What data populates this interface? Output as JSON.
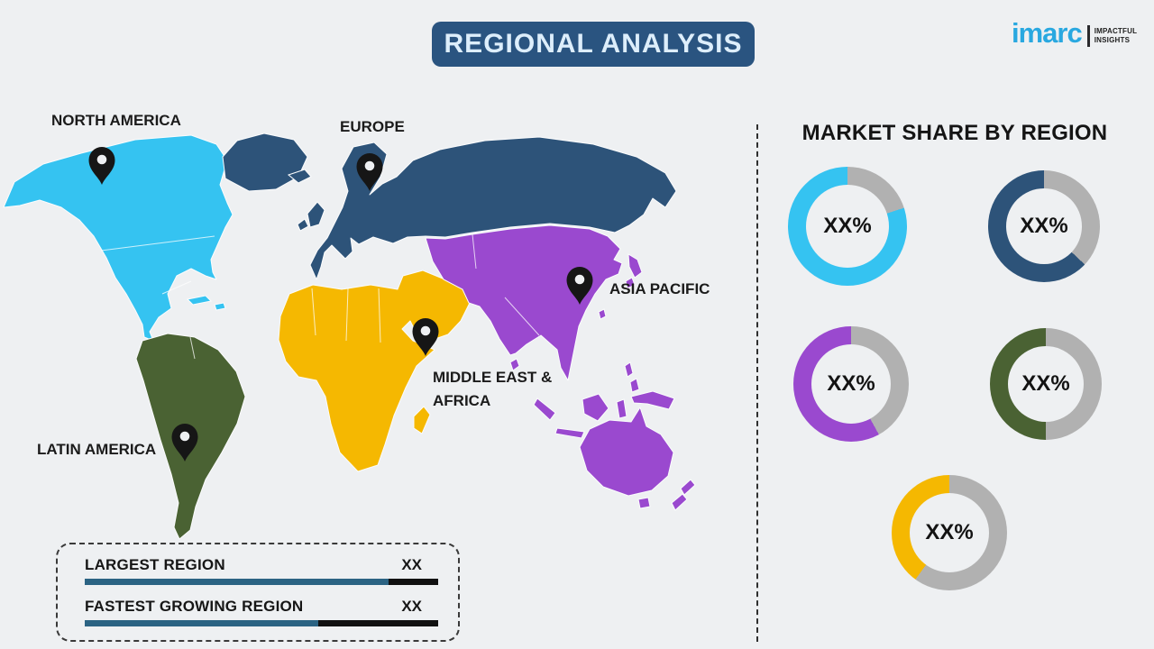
{
  "header": {
    "title": "REGIONAL ANALYSIS"
  },
  "logo": {
    "brand": "imarc",
    "tagline_line1": "IMPACTFUL",
    "tagline_line2": "INSIGHTS",
    "brand_color": "#29a8e0"
  },
  "map": {
    "labels": {
      "north_america": "NORTH AMERICA",
      "europe": "EUROPE",
      "asia_pacific": "ASIA PACIFIC",
      "middle_east_africa_line1": "MIDDLE EAST &",
      "middle_east_africa_line2": "AFRICA",
      "latin_america": "LATIN AMERICA"
    },
    "regions": [
      {
        "name": "North America",
        "color_key": "cyan"
      },
      {
        "name": "Europe",
        "color_key": "dark_blue"
      },
      {
        "name": "Asia Pacific",
        "color_key": "purple"
      },
      {
        "name": "Middle East & Africa",
        "color_key": "yellow"
      },
      {
        "name": "Latin America",
        "color_key": "green"
      }
    ]
  },
  "market_share": {
    "heading": "MARKET SHARE BY REGION",
    "donuts": [
      {
        "region": "North America",
        "value_label": "XX%",
        "color_key": "cyan",
        "colored_pct": 80,
        "gray_pct": 20
      },
      {
        "region": "Europe",
        "value_label": "XX%",
        "color_key": "dark_blue",
        "colored_pct": 63,
        "gray_pct": 37
      },
      {
        "region": "Asia Pacific",
        "value_label": "XX%",
        "color_key": "purple",
        "colored_pct": 58,
        "gray_pct": 42
      },
      {
        "region": "Latin America",
        "value_label": "XX%",
        "color_key": "green",
        "colored_pct": 50,
        "gray_pct": 50
      },
      {
        "region": "Middle East & Africa",
        "value_label": "XX%",
        "color_key": "yellow",
        "colored_pct": 40,
        "gray_pct": 60
      }
    ]
  },
  "legend": {
    "rows": [
      {
        "label": "LARGEST REGION",
        "value": "XX",
        "fill_pct": 86
      },
      {
        "label": "FASTEST GROWING REGION",
        "value": "XX",
        "fill_pct": 66
      }
    ]
  },
  "colors": {
    "cyan": "#35c3f1",
    "dark_blue": "#2d5379",
    "purple": "#9a49cf",
    "yellow": "#f5b801",
    "green": "#4a6233",
    "gray": "#b1b1b1",
    "banner": "#2a5480",
    "bar_blue": "#2b6383",
    "bar_black": "#111111"
  },
  "chart_data": {
    "type": "pie",
    "title": "MARKET SHARE BY REGION",
    "note": "Donut charts show placeholder market shares per region; gray arc is remainder",
    "series": [
      {
        "name": "North America",
        "label": "XX%",
        "colored_fraction_pct": 80
      },
      {
        "name": "Europe",
        "label": "XX%",
        "colored_fraction_pct": 63
      },
      {
        "name": "Asia Pacific",
        "label": "XX%",
        "colored_fraction_pct": 58
      },
      {
        "name": "Latin America",
        "label": "XX%",
        "colored_fraction_pct": 50
      },
      {
        "name": "Middle East & Africa",
        "label": "XX%",
        "colored_fraction_pct": 40
      }
    ],
    "legend_bars": [
      {
        "label": "LARGEST REGION",
        "value": "XX",
        "blue_fraction_pct": 86
      },
      {
        "label": "FASTEST GROWING REGION",
        "value": "XX",
        "blue_fraction_pct": 66
      }
    ]
  }
}
